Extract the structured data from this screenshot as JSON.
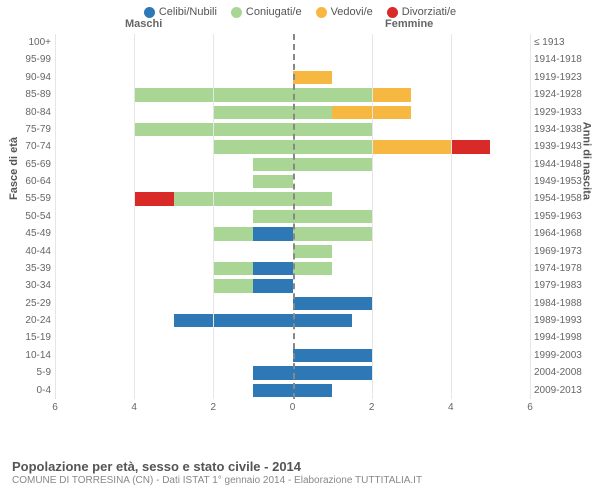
{
  "legend": {
    "items": [
      {
        "label": "Celibi/Nubili",
        "color": "#2e78b6"
      },
      {
        "label": "Coniugati/e",
        "color": "#a9d595"
      },
      {
        "label": "Vedovi/e",
        "color": "#f7b842"
      },
      {
        "label": "Divorziati/e",
        "color": "#d92a27"
      }
    ]
  },
  "headers": {
    "male": "Maschi",
    "female": "Femmine"
  },
  "axis_titles": {
    "left": "Fasce di età",
    "right": "Anni di nascita"
  },
  "x_axis": {
    "max": 6,
    "ticks": [
      6,
      4,
      2,
      0,
      2,
      4,
      6
    ]
  },
  "colors": {
    "celibi": "#2e78b6",
    "coniugati": "#a9d595",
    "vedovi": "#f7b842",
    "divorziati": "#d92a27",
    "grid": "#e6e6e6",
    "center": "#888888"
  },
  "rows": [
    {
      "age": "100+",
      "years": "≤ 1913",
      "male": {},
      "female": {}
    },
    {
      "age": "95-99",
      "years": "1914-1918",
      "male": {},
      "female": {}
    },
    {
      "age": "90-94",
      "years": "1919-1923",
      "male": {},
      "female": {
        "vedovi": 1
      }
    },
    {
      "age": "85-89",
      "years": "1924-1928",
      "male": {
        "coniugati": 4
      },
      "female": {
        "coniugati": 2,
        "vedovi": 1
      }
    },
    {
      "age": "80-84",
      "years": "1929-1933",
      "male": {
        "coniugati": 2
      },
      "female": {
        "coniugati": 1,
        "vedovi": 2
      }
    },
    {
      "age": "75-79",
      "years": "1934-1938",
      "male": {
        "coniugati": 4
      },
      "female": {
        "coniugati": 2
      }
    },
    {
      "age": "70-74",
      "years": "1939-1943",
      "male": {
        "coniugati": 2
      },
      "female": {
        "coniugati": 2,
        "vedovi": 2,
        "divorziati": 1
      }
    },
    {
      "age": "65-69",
      "years": "1944-1948",
      "male": {
        "coniugati": 1
      },
      "female": {
        "coniugati": 2
      }
    },
    {
      "age": "60-64",
      "years": "1949-1953",
      "male": {
        "coniugati": 1
      },
      "female": {}
    },
    {
      "age": "55-59",
      "years": "1954-1958",
      "male": {
        "coniugati": 3,
        "divorziati": 1
      },
      "female": {
        "coniugati": 1
      }
    },
    {
      "age": "50-54",
      "years": "1959-1963",
      "male": {
        "coniugati": 1
      },
      "female": {
        "coniugati": 2
      }
    },
    {
      "age": "45-49",
      "years": "1964-1968",
      "male": {
        "celibi": 1,
        "coniugati": 1
      },
      "female": {
        "coniugati": 2
      }
    },
    {
      "age": "40-44",
      "years": "1969-1973",
      "male": {},
      "female": {
        "coniugati": 1
      }
    },
    {
      "age": "35-39",
      "years": "1974-1978",
      "male": {
        "celibi": 1,
        "coniugati": 1
      },
      "female": {
        "coniugati": 1
      }
    },
    {
      "age": "30-34",
      "years": "1979-1983",
      "male": {
        "celibi": 1,
        "coniugati": 1
      },
      "female": {}
    },
    {
      "age": "25-29",
      "years": "1984-1988",
      "male": {},
      "female": {
        "celibi": 2
      }
    },
    {
      "age": "20-24",
      "years": "1989-1993",
      "male": {
        "celibi": 3
      },
      "female": {
        "celibi": 1.5
      }
    },
    {
      "age": "15-19",
      "years": "1994-1998",
      "male": {},
      "female": {}
    },
    {
      "age": "10-14",
      "years": "1999-2003",
      "male": {},
      "female": {
        "celibi": 2
      }
    },
    {
      "age": "5-9",
      "years": "2004-2008",
      "male": {
        "celibi": 1
      },
      "female": {
        "celibi": 2
      }
    },
    {
      "age": "0-4",
      "years": "2009-2013",
      "male": {
        "celibi": 1
      },
      "female": {
        "celibi": 1
      }
    }
  ],
  "footer": {
    "title": "Popolazione per età, sesso e stato civile - 2014",
    "subtitle": "COMUNE DI TORRESINA (CN) - Dati ISTAT 1° gennaio 2014 - Elaborazione TUTTITALIA.IT"
  }
}
